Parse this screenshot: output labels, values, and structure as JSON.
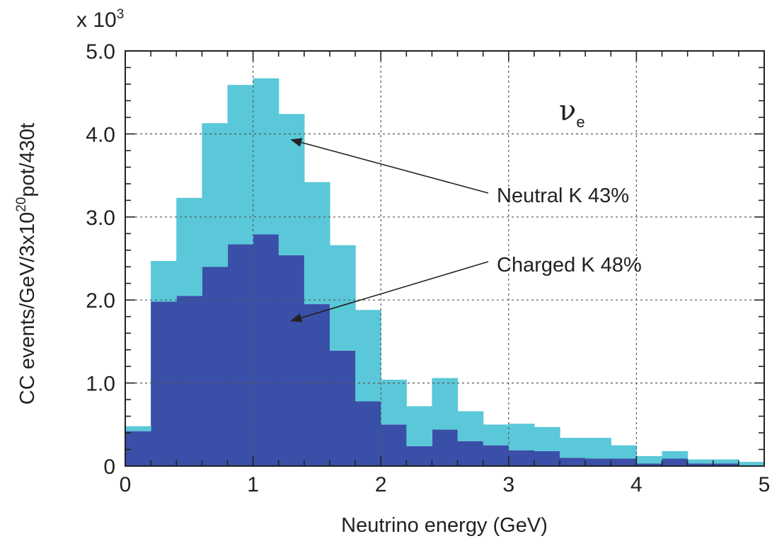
{
  "chart_data": {
    "type": "bar",
    "stacked": true,
    "xlabel": "Neutrino energy (GeV)",
    "ylabel_parts": {
      "base": "CC events/GeV/3x10",
      "sup": "20",
      "rest": "pot/430t"
    },
    "y_multiplier": {
      "base": "x 10",
      "sup": "3"
    },
    "xlim": [
      0,
      5
    ],
    "ylim": [
      0,
      5.0
    ],
    "x_ticks": [
      0,
      1,
      2,
      3,
      4,
      5
    ],
    "x_tick_labels": [
      "0",
      "1",
      "2",
      "3",
      "4",
      "5"
    ],
    "y_ticks": [
      0,
      1.0,
      2.0,
      3.0,
      4.0,
      5.0
    ],
    "y_tick_labels": [
      "0",
      "1.0",
      "2.0",
      "3.0",
      "4.0",
      "5.0"
    ],
    "grid": true,
    "bin_edges": [
      0,
      0.2,
      0.4,
      0.6,
      0.8,
      1.0,
      1.2,
      1.4,
      1.6,
      1.8,
      2.0,
      2.2,
      2.4,
      2.6,
      2.8,
      3.0,
      3.2,
      3.4,
      3.6,
      3.8,
      4.0,
      4.2,
      4.4,
      4.6,
      4.8,
      5.0
    ],
    "series": [
      {
        "color": "#3a4fa8",
        "values": [
          0.42,
          1.98,
          2.05,
          2.4,
          2.67,
          2.79,
          2.54,
          1.95,
          1.39,
          0.78,
          0.5,
          0.24,
          0.44,
          0.3,
          0.25,
          0.19,
          0.18,
          0.1,
          0.09,
          0.09,
          0.03,
          0.09,
          0.03,
          0.03,
          0.0
        ]
      },
      {
        "color": "#5ac8d8",
        "values": [
          0.06,
          0.49,
          1.18,
          1.73,
          1.92,
          1.88,
          1.7,
          1.47,
          1.27,
          1.1,
          0.54,
          0.48,
          0.62,
          0.36,
          0.25,
          0.32,
          0.29,
          0.24,
          0.25,
          0.16,
          0.09,
          0.09,
          0.05,
          0.05,
          0.05
        ]
      }
    ],
    "annotations": [
      {
        "text": "Neutral K 43%",
        "points_to": [
          1.3,
          3.93
        ]
      },
      {
        "text": "Charged K 48%",
        "points_to": [
          1.3,
          1.75
        ]
      }
    ],
    "label_symbol": {
      "base": "ν",
      "sub": "e"
    }
  }
}
